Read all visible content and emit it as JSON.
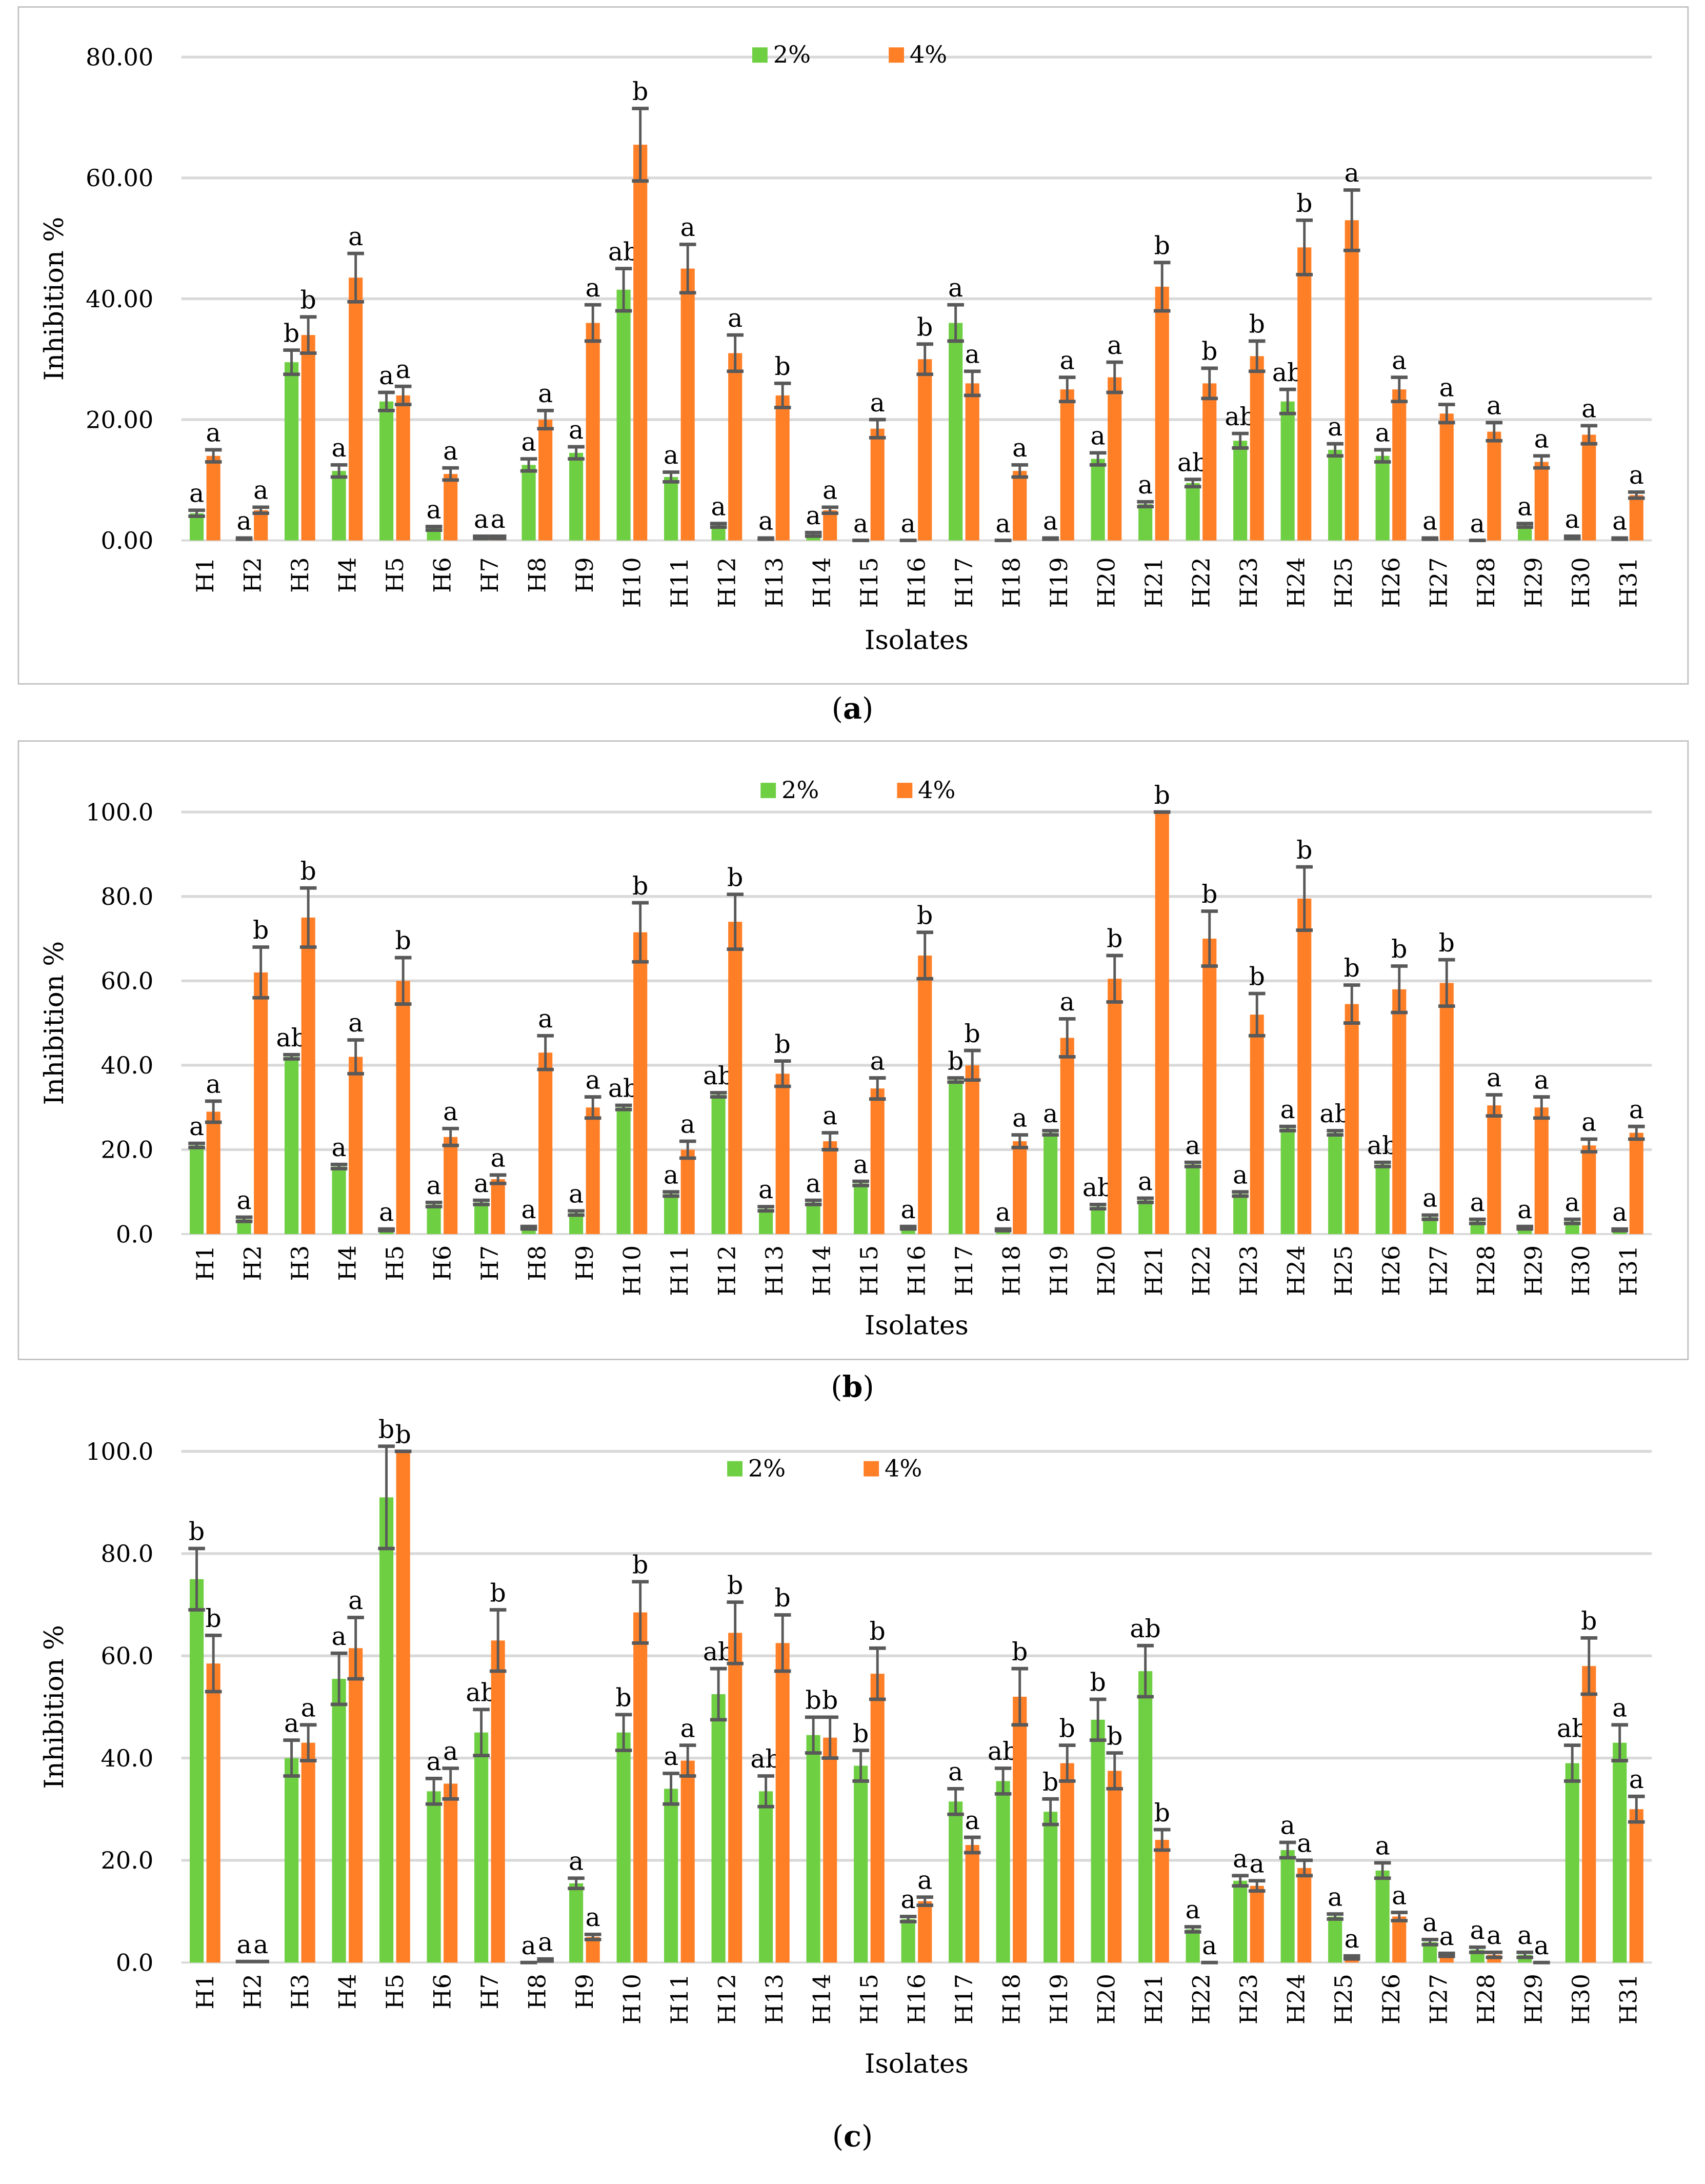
{
  "legend": [
    {
      "label": "2%",
      "color": "#6FCF42"
    },
    {
      "label": "4%",
      "color": "#FF7F27"
    }
  ],
  "error_color": "#595959",
  "grid_color": "#D9D9D9",
  "chart_data": [
    {
      "type": "bar",
      "caption_letter": "a",
      "xlabel": "Isolates",
      "ylabel": "Inhibition %",
      "ylim": [
        0,
        80
      ],
      "yticks": [
        0,
        20,
        40,
        60,
        80
      ],
      "tick_decimals": 2,
      "grid": true,
      "legend_position": "top-center",
      "categories": [
        "H1",
        "H2",
        "H3",
        "H4",
        "H5",
        "H6",
        "H7",
        "H8",
        "H9",
        "H10",
        "H11",
        "H12",
        "H13",
        "H14",
        "H15",
        "H16",
        "H17",
        "H18",
        "H19",
        "H20",
        "H21",
        "H22",
        "H23",
        "H24",
        "H25",
        "H26",
        "H27",
        "H28",
        "H29",
        "H30",
        "H31"
      ],
      "series": [
        {
          "name": "2%",
          "values": [
            4.5,
            0.3,
            29.5,
            11.5,
            23,
            2,
            0.5,
            12.5,
            14.5,
            41.5,
            10.5,
            2.5,
            0.3,
            1,
            0,
            0,
            36,
            0,
            0.3,
            13.5,
            6,
            9.5,
            16.5,
            23,
            15,
            14,
            0.3,
            0,
            2.5,
            0.5,
            0.3
          ],
          "errors": [
            0.5,
            0.1,
            2,
            1,
            1.5,
            0.3,
            0.2,
            1,
            1,
            3.5,
            0.8,
            0.3,
            0.1,
            0.3,
            0,
            0,
            3,
            0,
            0.1,
            1,
            0.4,
            0.6,
            1.2,
            2,
            1,
            1,
            0.1,
            0,
            0.3,
            0.2,
            0.1
          ],
          "letters": [
            "a",
            "a",
            "b",
            "a",
            "a",
            "a",
            "a",
            "a",
            "a",
            "ab",
            "a",
            "a",
            "a",
            "a",
            "a",
            "a",
            "a",
            "a",
            "a",
            "a",
            "a",
            "ab",
            "ab",
            "ab",
            "a",
            "a",
            "a",
            "a",
            "a",
            "a",
            "a"
          ]
        },
        {
          "name": "4%",
          "values": [
            14,
            5,
            34,
            43.5,
            24,
            11,
            0.5,
            20,
            36,
            65.5,
            45,
            31,
            24,
            5,
            18.5,
            30,
            26,
            11.5,
            25,
            27,
            42,
            26,
            30.5,
            48.5,
            53,
            25,
            21,
            18,
            13,
            17.5,
            7.5
          ],
          "errors": [
            1,
            0.5,
            3,
            4,
            1.5,
            1,
            0.2,
            1.5,
            3,
            6,
            4,
            3,
            2,
            0.5,
            1.5,
            2.5,
            2,
            1,
            2,
            2.5,
            4,
            2.5,
            2.5,
            4.5,
            5,
            2,
            1.5,
            1.5,
            1,
            1.5,
            0.5
          ],
          "letters": [
            "a",
            "a",
            "b",
            "a",
            "a",
            "a",
            "a",
            "a",
            "a",
            "b",
            "a",
            "a",
            "b",
            "a",
            "a",
            "b",
            "a",
            "a",
            "a",
            "a",
            "b",
            "b",
            "b",
            "b",
            "a",
            "a",
            "a",
            "a",
            "a",
            "a",
            "a"
          ]
        }
      ]
    },
    {
      "type": "bar",
      "caption_letter": "b",
      "xlabel": "Isolates",
      "ylabel": "Inhibition %",
      "ylim": [
        0,
        100
      ],
      "yticks": [
        0,
        20,
        40,
        60,
        80,
        100
      ],
      "tick_decimals": 1,
      "grid": true,
      "legend_position": "top-center",
      "categories": [
        "H1",
        "H2",
        "H3",
        "H4",
        "H5",
        "H6",
        "H7",
        "H8",
        "H9",
        "H10",
        "H11",
        "H12",
        "H13",
        "H14",
        "H15",
        "H16",
        "H17",
        "H18",
        "H19",
        "H20",
        "H21",
        "H22",
        "H23",
        "H24",
        "H25",
        "H26",
        "H27",
        "H28",
        "H29",
        "H30",
        "H31"
      ],
      "series": [
        {
          "name": "2%",
          "values": [
            21,
            3.5,
            42,
            16,
            1,
            7,
            7.5,
            1.5,
            5,
            30,
            9.5,
            33,
            6,
            7.5,
            12,
            1.5,
            36.5,
            1,
            24,
            6.5,
            8,
            16.5,
            9.5,
            25,
            24,
            16.5,
            4,
            3,
            1.5,
            3,
            1
          ],
          "errors": [
            0.5,
            0.5,
            0.5,
            0.5,
            0.2,
            0.5,
            0.5,
            0.3,
            0.5,
            0.5,
            0.5,
            0.5,
            0.5,
            0.5,
            0.5,
            0.3,
            0.5,
            0.2,
            0.5,
            0.5,
            0.5,
            0.5,
            0.5,
            0.5,
            0.5,
            0.5,
            0.5,
            0.5,
            0.3,
            0.5,
            0.2
          ],
          "letters": [
            "a",
            "a",
            "ab",
            "a",
            "a",
            "a",
            "a",
            "a",
            "a",
            "ab",
            "a",
            "ab",
            "a",
            "a",
            "a",
            "a",
            "b",
            "a",
            "a",
            "ab",
            "a",
            "a",
            "a",
            "a",
            "ab",
            "ab",
            "a",
            "a",
            "a",
            "a",
            "a"
          ]
        },
        {
          "name": "4%",
          "values": [
            29,
            62,
            75,
            42,
            60,
            23,
            13,
            43,
            30,
            71.5,
            20,
            74,
            38,
            22,
            34.5,
            66,
            40,
            22,
            46.5,
            60.5,
            100,
            70,
            52,
            79.5,
            54.5,
            58,
            59.5,
            30.5,
            30,
            21,
            24
          ],
          "errors": [
            2.5,
            6,
            7,
            4,
            5.5,
            2,
            1,
            4,
            2.5,
            7,
            2,
            6.5,
            3,
            2,
            2.5,
            5.5,
            3.5,
            1.5,
            4.5,
            5.5,
            0,
            6.5,
            5,
            7.5,
            4.5,
            5.5,
            5.5,
            2.5,
            2.5,
            1.5,
            1.5
          ],
          "letters": [
            "a",
            "b",
            "b",
            "a",
            "b",
            "a",
            "a",
            "a",
            "a",
            "b",
            "a",
            "b",
            "b",
            "a",
            "a",
            "b",
            "b",
            "a",
            "a",
            "b",
            "b",
            "b",
            "b",
            "b",
            "b",
            "b",
            "b",
            "a",
            "a",
            "a",
            "a"
          ]
        }
      ]
    },
    {
      "type": "bar",
      "caption_letter": "c",
      "xlabel": "Isolates",
      "ylabel": "Inhibition %",
      "ylim": [
        0,
        100
      ],
      "yticks": [
        0,
        20,
        40,
        60,
        80,
        100
      ],
      "tick_decimals": 1,
      "grid": true,
      "legend_position": "top-center",
      "categories": [
        "H1",
        "H2",
        "H3",
        "H4",
        "H5",
        "H6",
        "H7",
        "H8",
        "H9",
        "H10",
        "H11",
        "H12",
        "H13",
        "H14",
        "H15",
        "H16",
        "H17",
        "H18",
        "H19",
        "H20",
        "H21",
        "H22",
        "H23",
        "H24",
        "H25",
        "H26",
        "H27",
        "H28",
        "H29",
        "H30",
        "H31"
      ],
      "series": [
        {
          "name": "2%",
          "values": [
            75,
            0.2,
            40,
            55.5,
            91,
            33.5,
            45,
            0,
            15.5,
            45,
            34,
            52.5,
            33.5,
            44.5,
            38.5,
            8.5,
            31.5,
            35.5,
            29.5,
            47.5,
            57,
            6.5,
            16,
            22,
            9,
            18,
            4,
            2.5,
            1.5,
            39,
            43
          ],
          "errors": [
            6,
            0,
            3.5,
            5,
            10,
            2.5,
            4.5,
            0,
            1,
            3.5,
            3,
            5,
            3,
            3.5,
            3,
            0.5,
            2.5,
            2.5,
            2.5,
            4,
            5,
            0.5,
            1,
            1.5,
            0.5,
            1.5,
            0.5,
            0.5,
            0.5,
            3.5,
            3.5
          ],
          "letters": [
            "b",
            "a",
            "a",
            "a",
            "b",
            "a",
            "ab",
            "a",
            "a",
            "b",
            "a",
            "ab",
            "ab",
            "b",
            "b",
            "a",
            "a",
            "ab",
            "b",
            "b",
            "ab",
            "a",
            "a",
            "a",
            "a",
            "a",
            "a",
            "a",
            "a",
            "ab",
            "a"
          ]
        },
        {
          "name": "4%",
          "values": [
            58.5,
            0.2,
            43,
            61.5,
            100,
            35,
            63,
            0.5,
            5,
            68.5,
            39.5,
            64.5,
            62.5,
            44,
            56.5,
            12,
            23,
            52,
            39,
            37.5,
            24,
            0,
            15,
            18.5,
            1,
            9,
            1.5,
            1.5,
            0,
            58,
            30
          ],
          "errors": [
            5.5,
            0,
            3.5,
            6,
            0,
            3,
            6,
            0.2,
            0.5,
            6,
            3,
            6,
            5.5,
            4,
            5,
            0.8,
            1.5,
            5.5,
            3.5,
            3.5,
            2,
            0,
            1,
            1.5,
            0.3,
            0.8,
            0.3,
            0.5,
            0,
            5.5,
            2.5
          ],
          "letters": [
            "b",
            "a",
            "a",
            "a",
            "b",
            "a",
            "b",
            "a",
            "a",
            "b",
            "a",
            "b",
            "b",
            "b",
            "b",
            "a",
            "a",
            "b",
            "b",
            "b",
            "b",
            "a",
            "a",
            "a",
            "a",
            "a",
            "a",
            "a",
            "a",
            "b",
            "a"
          ]
        }
      ]
    }
  ]
}
